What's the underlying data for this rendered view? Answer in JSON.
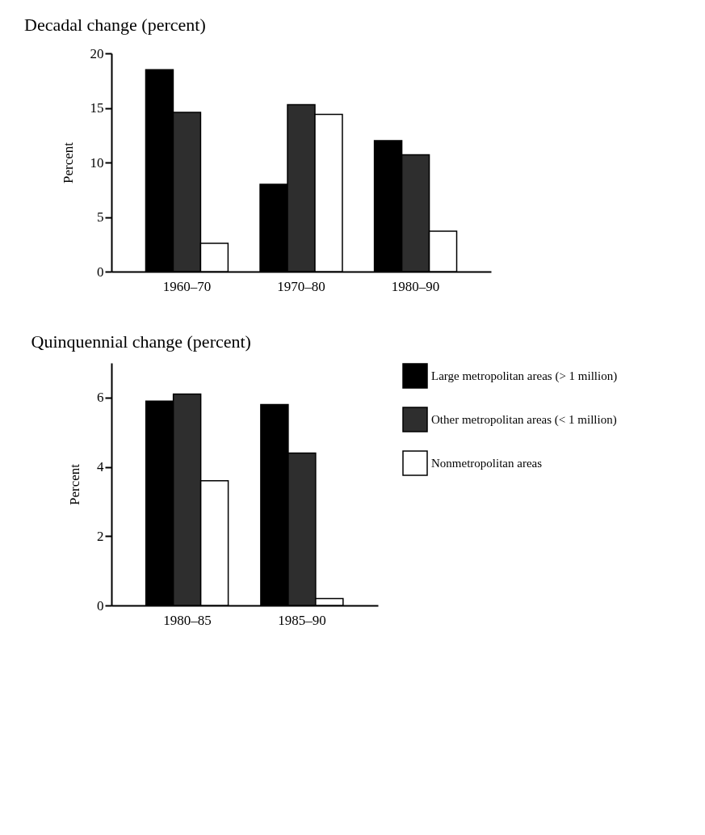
{
  "chart_data": [
    {
      "type": "bar",
      "title": "Decadal change (percent)",
      "ylabel": "Percent",
      "categories": [
        "1960–70",
        "1970–80",
        "1980–90"
      ],
      "ylim": [
        0,
        20
      ],
      "yticks": [
        0,
        5,
        10,
        15,
        20
      ],
      "grid": false,
      "legend": false,
      "series": [
        {
          "color": "#000000",
          "values": [
            18.5,
            8.0,
            12.0
          ]
        },
        {
          "color": "#2e2e2e",
          "values": [
            14.6,
            15.3,
            10.7
          ]
        },
        {
          "color": "#ffffff",
          "values": [
            2.6,
            14.4,
            3.7
          ]
        }
      ]
    },
    {
      "type": "bar",
      "title": "Quinquennial change (percent)",
      "ylabel": "Percent",
      "categories": [
        "1980–85",
        "1985–90"
      ],
      "ylim": [
        0,
        7
      ],
      "yticks": [
        0,
        2,
        4,
        6
      ],
      "grid": false,
      "legend": "right",
      "series": [
        {
          "name": "Large metropolitan areas (> 1 million)",
          "color": "#000000",
          "values": [
            5.9,
            5.8
          ]
        },
        {
          "name": "Other metropolitan areas (< 1 million)",
          "color": "#2e2e2e",
          "values": [
            6.1,
            4.4
          ]
        },
        {
          "name": "Nonmetropolitan areas",
          "color": "#ffffff",
          "values": [
            3.6,
            0.2
          ]
        }
      ]
    }
  ]
}
